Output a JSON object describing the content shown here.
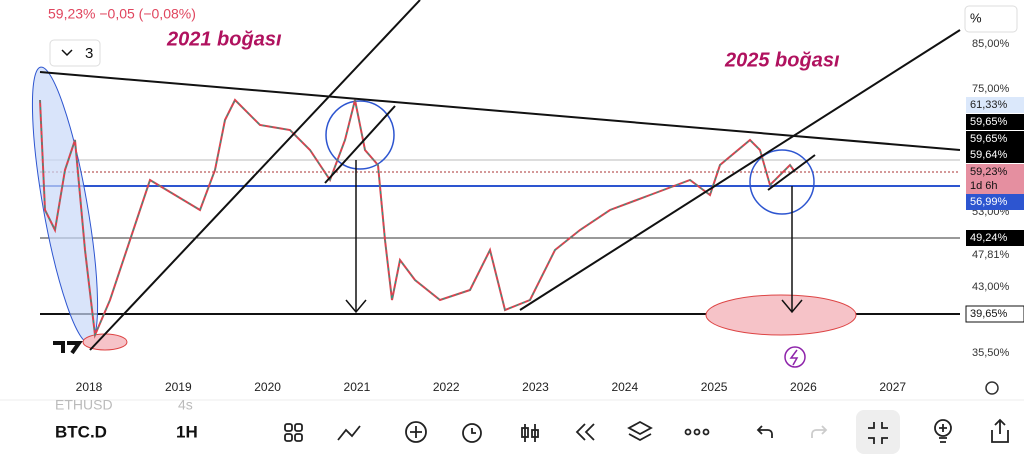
{
  "header": {
    "quote": "59,23%  −0,05 (−0,08%)",
    "collapse_count": "3"
  },
  "annotations": [
    "2021  boğası",
    "2025 boğası"
  ],
  "price_axis": {
    "unit": "%",
    "ticks": [
      "85,00%",
      "75,00%",
      "53,00%",
      "47,81%",
      "43,00%",
      "35,50%"
    ]
  },
  "price_tags": [
    "61,33%",
    "59,65%",
    "59,65%",
    "59,64%",
    "59,23%",
    "1d 6h",
    "56,99%",
    "49,24%",
    "39,65%"
  ],
  "time_axis": [
    "2018",
    "2019",
    "2020",
    "2021",
    "2022",
    "2023",
    "2024",
    "2025",
    "2026",
    "2027"
  ],
  "toolbar": {
    "symbol": "BTC.D",
    "interval": "1H",
    "ghost_symbol": "ETHUSD",
    "ghost_interval": "4s"
  }
}
